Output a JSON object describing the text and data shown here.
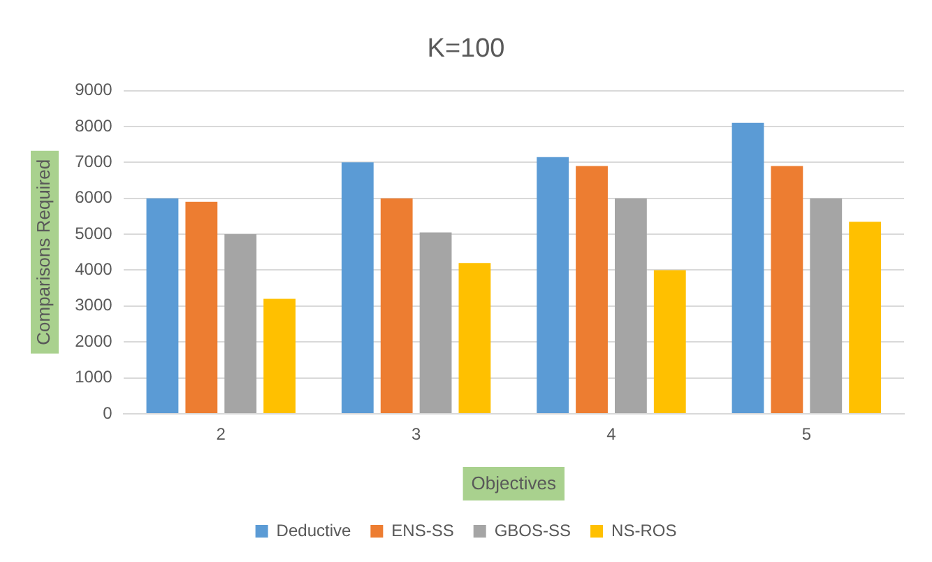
{
  "chart_data": {
    "type": "bar",
    "title": "K=100",
    "xlabel": "Objectives",
    "ylabel": "Comparisons Required",
    "categories": [
      "2",
      "3",
      "4",
      "5"
    ],
    "series": [
      {
        "name": "Deductive",
        "color": "#5b9bd5",
        "values": [
          6000,
          7000,
          7150,
          8100
        ]
      },
      {
        "name": "ENS-SS",
        "color": "#ed7d31",
        "values": [
          5900,
          6000,
          6900,
          6900
        ]
      },
      {
        "name": "GBOS-SS",
        "color": "#a5a5a5",
        "values": [
          5000,
          5050,
          6000,
          6000
        ]
      },
      {
        "name": "NS-ROS",
        "color": "#ffc000",
        "values": [
          3200,
          4200,
          4000,
          5350
        ]
      }
    ],
    "ylim": [
      0,
      9000
    ],
    "yticks": [
      0,
      1000,
      2000,
      3000,
      4000,
      5000,
      6000,
      7000,
      8000,
      9000
    ],
    "grid": "y",
    "legend": "bottom"
  }
}
